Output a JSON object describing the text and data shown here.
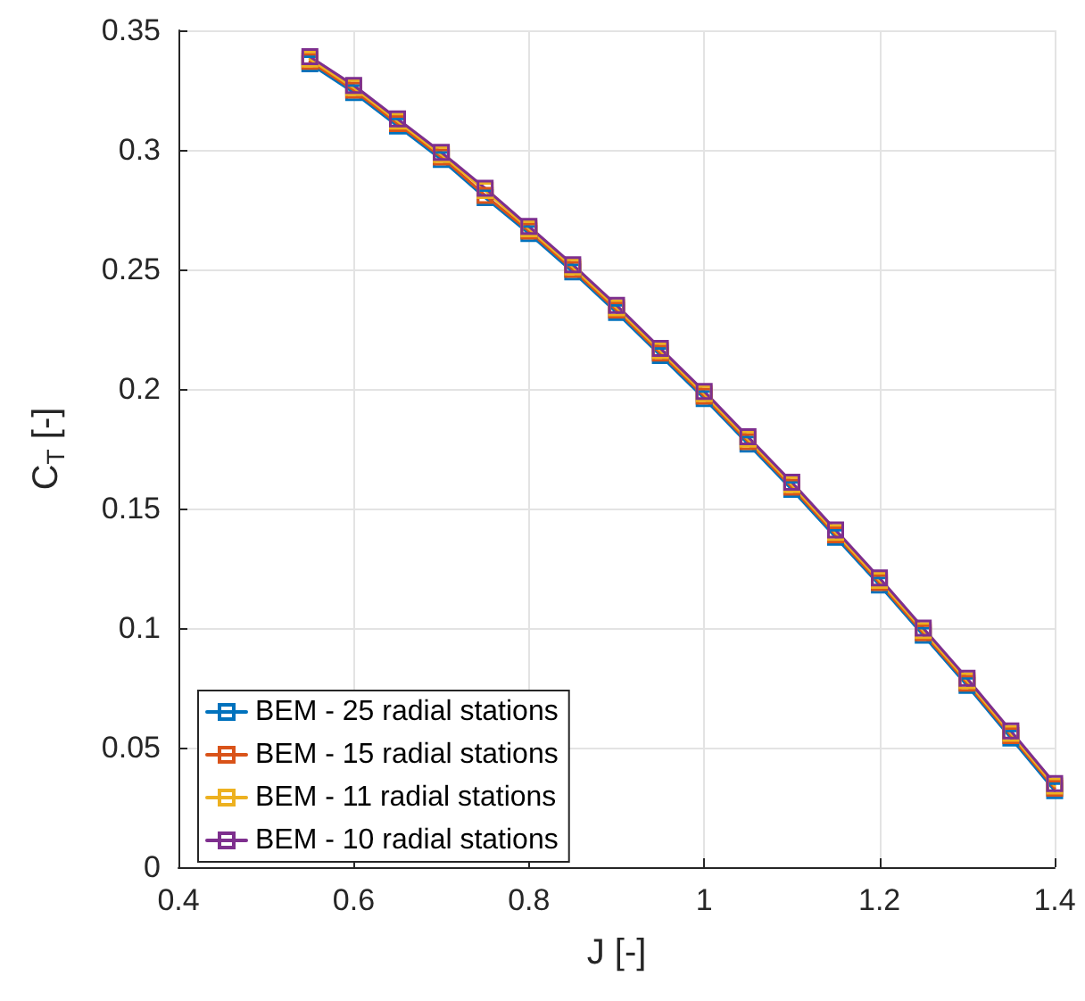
{
  "chart_data": {
    "type": "line",
    "xlabel": "J [-]",
    "ylabel": "C$_{T}$ [-]",
    "x": [
      0.55,
      0.6,
      0.65,
      0.7,
      0.75,
      0.8,
      0.85,
      0.9,
      0.95,
      1.0,
      1.05,
      1.1,
      1.15,
      1.2,
      1.25,
      1.3,
      1.35,
      1.4
    ],
    "series": [
      {
        "name": "BEM - 25 radial stations",
        "color": "#0072bd",
        "values": [
          0.336,
          0.324,
          0.31,
          0.296,
          0.28,
          0.265,
          0.249,
          0.232,
          0.214,
          0.196,
          0.177,
          0.158,
          0.138,
          0.118,
          0.097,
          0.076,
          0.054,
          0.032
        ]
      },
      {
        "name": "BEM - 15 radial stations",
        "color": "#d95319",
        "values": [
          0.337,
          0.325,
          0.311,
          0.297,
          0.281,
          0.266,
          0.25,
          0.233,
          0.215,
          0.197,
          0.178,
          0.159,
          0.139,
          0.119,
          0.098,
          0.077,
          0.055,
          0.033
        ]
      },
      {
        "name": "BEM - 11 radial stations",
        "color": "#edb120",
        "values": [
          0.338,
          0.326,
          0.312,
          0.298,
          0.283,
          0.267,
          0.251,
          0.234,
          0.216,
          0.198,
          0.179,
          0.16,
          0.14,
          0.12,
          0.099,
          0.078,
          0.056,
          0.034
        ]
      },
      {
        "name": "BEM - 10 radial stations",
        "color": "#7e2f8e",
        "values": [
          0.339,
          0.327,
          0.313,
          0.299,
          0.284,
          0.268,
          0.252,
          0.235,
          0.217,
          0.199,
          0.18,
          0.161,
          0.141,
          0.121,
          0.1,
          0.079,
          0.057,
          0.035
        ]
      }
    ],
    "xlim": [
      0.4,
      1.4
    ],
    "xticks": [
      0.4,
      0.6,
      0.8,
      1,
      1.2,
      1.4
    ],
    "ylim": [
      0,
      0.35
    ],
    "yticks": [
      0,
      0.05,
      0.1,
      0.15,
      0.2,
      0.25,
      0.3,
      0.35
    ],
    "grid": true,
    "legend": "bottom left",
    "marker": "square",
    "line_style": "solid"
  }
}
